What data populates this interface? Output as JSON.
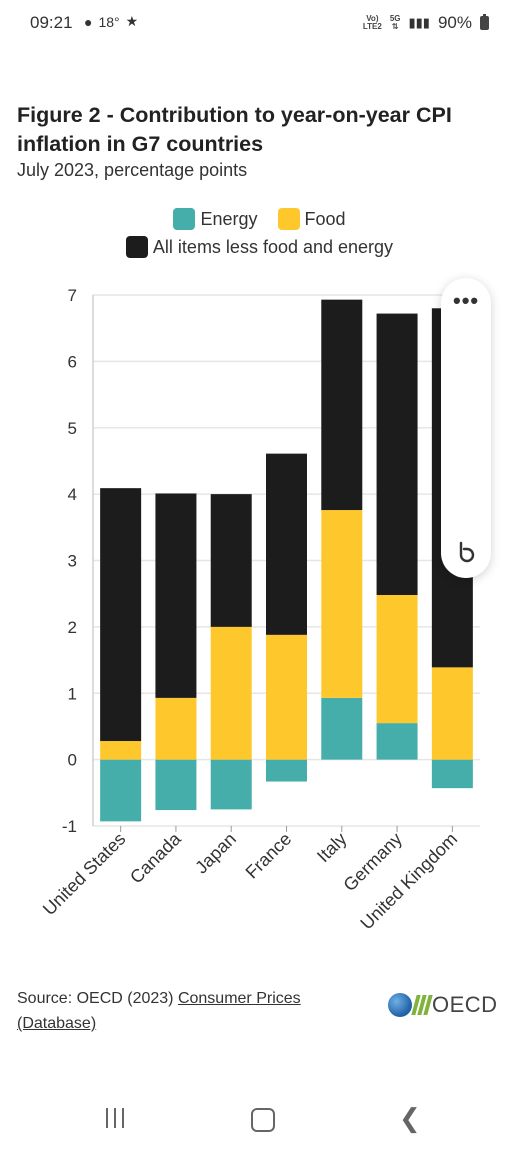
{
  "status_bar": {
    "time": "09:21",
    "temperature": "18°",
    "network_top": "Vo)",
    "network_bottom": "LTE2",
    "signal_label": "5G",
    "battery": "90%"
  },
  "figure": {
    "title": "Figure 2 - Contribution to year-on-year CPI inflation in G7 countries",
    "subtitle": "July 2023, percentage points"
  },
  "colors": {
    "energy": "#45aeaa",
    "food": "#fec82c",
    "core": "#1c1c1c",
    "grid": "#e6e6e6"
  },
  "chart_data": {
    "type": "bar",
    "stacked": true,
    "categories": [
      "United States",
      "Canada",
      "Japan",
      "France",
      "Italy",
      "Germany",
      "United Kingdom"
    ],
    "series": [
      {
        "name": "Energy",
        "values": [
          -0.93,
          -0.76,
          -0.75,
          -0.33,
          0.93,
          0.55,
          -0.43
        ]
      },
      {
        "name": "Food",
        "values": [
          0.28,
          0.93,
          2.0,
          1.88,
          2.83,
          1.93,
          1.39
        ]
      },
      {
        "name": "All items less food and energy",
        "values": [
          3.81,
          3.08,
          2.0,
          2.73,
          3.17,
          4.24,
          5.41
        ]
      }
    ],
    "ylim": [
      -1,
      7
    ],
    "yticks": [
      -1,
      0,
      1,
      2,
      3,
      4,
      5,
      6,
      7
    ],
    "grid": true,
    "legend_position": "top"
  },
  "legend": {
    "energy_label": "Energy",
    "food_label": "Food",
    "core_label": "All items less food and energy"
  },
  "source": {
    "prefix": "Source: OECD (2023) ",
    "link_text": "Consumer Prices (Database)"
  },
  "logo": {
    "text": "OECD"
  },
  "overlay_panel": {
    "menu_icon": "more-dots-icon",
    "assistant_icon": "bixby-icon"
  },
  "nav": {
    "recent_icon": "recent-apps-icon",
    "home_icon": "home-icon",
    "back_icon": "back-icon"
  }
}
